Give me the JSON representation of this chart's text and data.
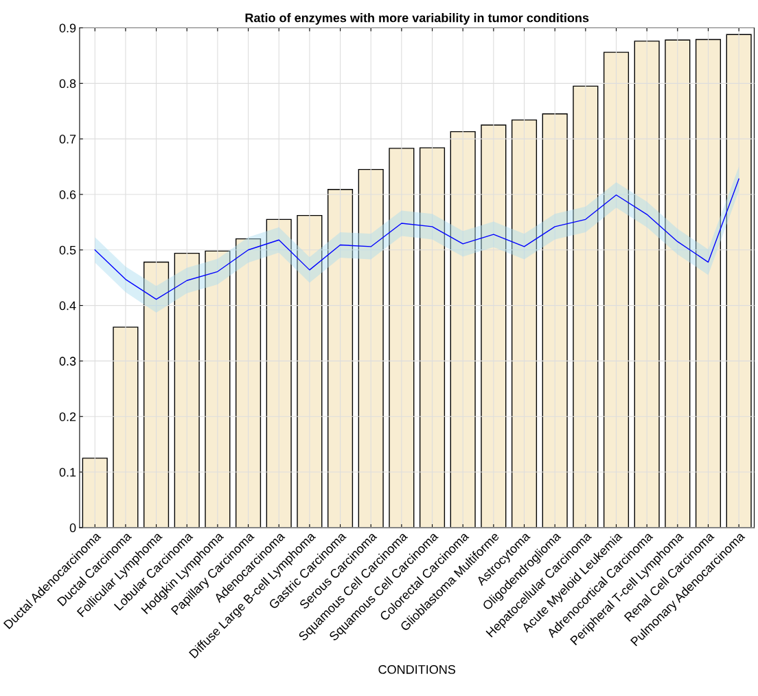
{
  "chart_data": {
    "type": "bar",
    "title": "Ratio of enzymes with more variability in tumor conditions",
    "xlabel": "CONDITIONS",
    "categories": [
      "Ductal Adenocarcinoma",
      "Ductal Carcinoma",
      "Follicular Lymphoma",
      "Lobular Carcinoma",
      "Hodgkin Lymphoma",
      "Papillary Carcinoma",
      "Adenocarcinoma",
      "Diffuse Large B-cell Lymphoma",
      "Gastric Carcinoma",
      "Serous Carcinoma",
      "Squamous Cell Carcinoma",
      "Squamous Cell Carcinoma",
      "Colorectal Carcinoma",
      "Glioblastoma Multiforme",
      "Astrocytoma",
      "Oligodendroglioma",
      "Hepatocellular Carcinoma",
      "Acute Myeloid Leukemia",
      "Adrenocortical Carcinoma",
      "Peripheral T-cell Lymphoma",
      "Renal Cell Carcinoma",
      "Pulmonary Adenocarcinoma"
    ],
    "series": [
      {
        "color": "#f8edd2",
        "values": [
          0.125,
          0.361,
          0.478,
          0.494,
          0.498,
          0.52,
          0.555,
          0.562,
          0.609,
          0.645,
          0.683,
          0.684,
          0.713,
          0.725,
          0.734,
          0.745,
          0.795,
          0.856,
          0.876,
          0.878,
          0.879,
          0.888
        ]
      },
      {
        "type": "line",
        "color": "#0000ff",
        "values": [
          0.5,
          0.447,
          0.411,
          0.445,
          0.461,
          0.5,
          0.518,
          0.464,
          0.509,
          0.506,
          0.548,
          0.542,
          0.511,
          0.528,
          0.506,
          0.542,
          0.555,
          0.599,
          0.564,
          0.515,
          0.478,
          0.628
        ],
        "lower": [
          0.477,
          0.424,
          0.387,
          0.422,
          0.438,
          0.477,
          0.495,
          0.441,
          0.486,
          0.483,
          0.525,
          0.519,
          0.488,
          0.505,
          0.483,
          0.519,
          0.532,
          0.576,
          0.541,
          0.492,
          0.455,
          0.606
        ],
        "upper": [
          0.523,
          0.47,
          0.435,
          0.468,
          0.484,
          0.523,
          0.541,
          0.487,
          0.532,
          0.529,
          0.571,
          0.565,
          0.534,
          0.551,
          0.529,
          0.565,
          0.578,
          0.622,
          0.587,
          0.538,
          0.501,
          0.65
        ]
      }
    ],
    "ylim": [
      0,
      0.9
    ],
    "yticks": [
      0,
      0.1,
      0.2,
      0.3,
      0.4,
      0.5,
      0.6,
      0.7,
      0.8,
      0.9
    ],
    "grid": true
  }
}
